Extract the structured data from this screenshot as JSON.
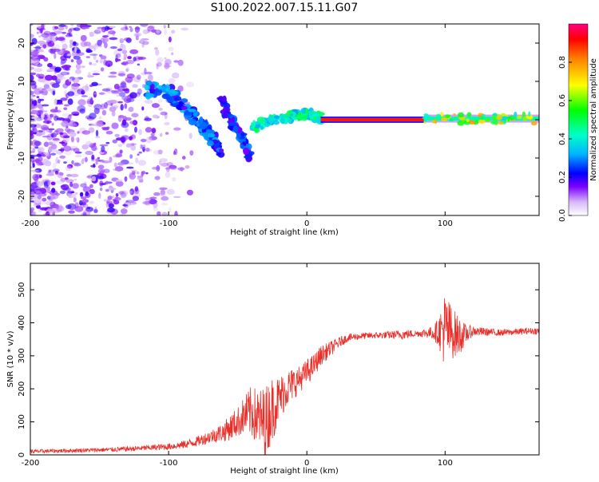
{
  "title": "S100.2022.007.15.11.G07",
  "chart_data": [
    {
      "type": "heatmap",
      "xlabel": "Height of straight line (km)",
      "ylabel": "Frequency (Hz)",
      "xlim": [
        -200,
        168
      ],
      "ylim": [
        -25,
        25
      ],
      "xticks": [
        -200,
        -100,
        0,
        100
      ],
      "yticks": [
        -20,
        -10,
        0,
        10,
        20
      ],
      "colorbar": {
        "label": "Normalized spectral amplitude",
        "range": [
          0,
          1
        ],
        "ticks": [
          "0.0",
          "0.2",
          "0.4",
          "0.6",
          "0.8"
        ],
        "tick_values": [
          0.0,
          0.2,
          0.4,
          0.6,
          0.8
        ]
      },
      "features": [
        {
          "name": "noise-cloud",
          "x_range": [
            -200,
            -105
          ],
          "freq_range": [
            -25,
            25
          ],
          "amplitude": [
            0.05,
            0.2
          ]
        },
        {
          "name": "descending-trace",
          "points": [
            [
              -115,
              8
            ],
            [
              -100,
              7
            ],
            [
              -90,
              4
            ],
            [
              -80,
              0
            ],
            [
              -70,
              -4
            ],
            [
              -62,
              -8
            ]
          ],
          "amplitude": [
            0.15,
            0.35
          ]
        },
        {
          "name": "secondary-trace",
          "points": [
            [
              -62,
              5
            ],
            [
              -55,
              0
            ],
            [
              -48,
              -4
            ],
            [
              -42,
              -9
            ]
          ],
          "amplitude": [
            0.15,
            0.3
          ]
        },
        {
          "name": "converging-trace",
          "points": [
            [
              -40,
              -2
            ],
            [
              -25,
              0
            ],
            [
              -10,
              1
            ],
            [
              0,
              1.5
            ],
            [
              10,
              0.5
            ]
          ],
          "amplitude": [
            0.3,
            0.55
          ]
        },
        {
          "name": "stable-line",
          "x_range": [
            10,
            85
          ],
          "freq": 0,
          "amplitude": 0.9
        },
        {
          "name": "late-line",
          "x_range": [
            85,
            168
          ],
          "freq": 0.3,
          "amplitude": [
            0.35,
            0.8
          ]
        }
      ]
    },
    {
      "type": "line",
      "xlabel": "Height of straight line (km)",
      "ylabel": "SNR (10 * v/v)",
      "xlim": [
        -200,
        168
      ],
      "ylim": [
        0,
        580
      ],
      "xticks": [
        -200,
        -100,
        0,
        100
      ],
      "yticks": [
        0,
        100,
        200,
        300,
        400,
        500
      ],
      "color": "#e8302a",
      "series": [
        {
          "name": "SNR",
          "x": [
            -200,
            -180,
            -160,
            -140,
            -120,
            -100,
            -90,
            -80,
            -70,
            -60,
            -55,
            -50,
            -45,
            -40,
            -35,
            -30,
            -25,
            -20,
            -15,
            -10,
            -5,
            0,
            5,
            10,
            15,
            20,
            25,
            30,
            40,
            50,
            60,
            70,
            80,
            90,
            95,
            100,
            105,
            110,
            115,
            120,
            130,
            140,
            150,
            160,
            168
          ],
          "values": [
            10,
            12,
            14,
            16,
            20,
            25,
            30,
            40,
            55,
            70,
            85,
            100,
            120,
            130,
            110,
            100,
            140,
            170,
            200,
            215,
            230,
            250,
            270,
            300,
            315,
            330,
            345,
            355,
            360,
            362,
            363,
            365,
            368,
            370,
            372,
            380,
            370,
            360,
            365,
            375,
            372,
            370,
            372,
            375,
            375
          ],
          "spread": [
            6,
            6,
            6,
            7,
            8,
            10,
            12,
            15,
            20,
            30,
            40,
            45,
            60,
            80,
            90,
            110,
            100,
            70,
            60,
            50,
            40,
            40,
            35,
            30,
            25,
            20,
            15,
            12,
            10,
            10,
            12,
            15,
            10,
            18,
            40,
            120,
            80,
            60,
            30,
            15,
            12,
            10,
            10,
            10,
            10
          ]
        }
      ]
    }
  ]
}
